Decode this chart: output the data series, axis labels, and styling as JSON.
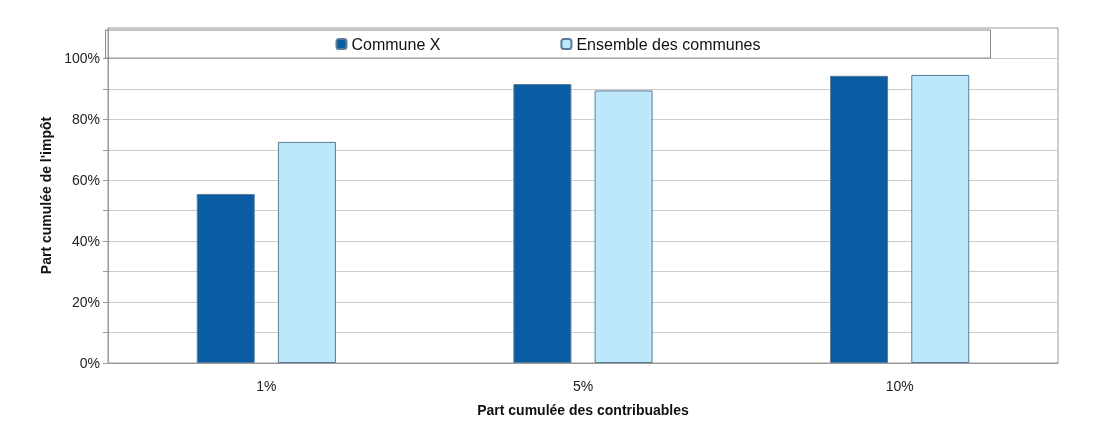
{
  "chart_data": {
    "type": "bar",
    "categories": [
      "1%",
      "5%",
      "10%"
    ],
    "series": [
      {
        "name": "Commune X",
        "color": "#0a5ca3",
        "values": [
          55.5,
          91.6,
          94.3
        ]
      },
      {
        "name": "Ensemble des communes",
        "color": "#bde8f9",
        "values": [
          72.6,
          89.5,
          94.6
        ]
      }
    ],
    "xlabel": "Part cumulée des contribuables",
    "ylabel": "Part cumulée de l'impôt",
    "ylim": [
      0,
      110
    ],
    "yticks": [
      {
        "value": 0,
        "label": "0%"
      },
      {
        "value": 10,
        "label": null
      },
      {
        "value": 20,
        "label": "20%"
      },
      {
        "value": 30,
        "label": null
      },
      {
        "value": 40,
        "label": "40%"
      },
      {
        "value": 50,
        "label": null
      },
      {
        "value": 60,
        "label": "60%"
      },
      {
        "value": 70,
        "label": null
      },
      {
        "value": 80,
        "label": "80%"
      },
      {
        "value": 90,
        "label": null
      },
      {
        "value": 100,
        "label": "100%"
      }
    ],
    "grid": true,
    "legend": "top"
  }
}
